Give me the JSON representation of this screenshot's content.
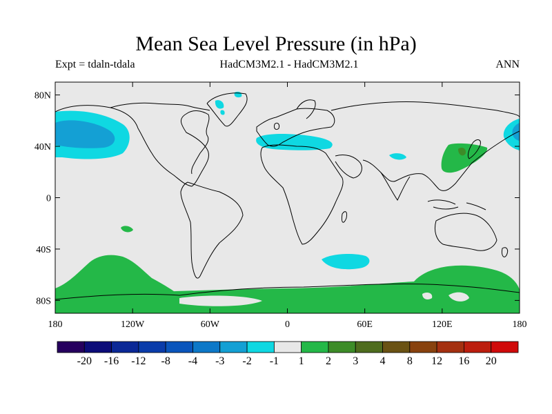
{
  "title": "Mean Sea Level Pressure (in hPa)",
  "subtitle_left": "Expt = tdaln-tdala",
  "subtitle_center": "HadCM3M2.1 - HadCM3M2.1",
  "subtitle_right": "ANN",
  "lat_ticks": [
    {
      "label": "80N",
      "value": 80
    },
    {
      "label": "40N",
      "value": 40
    },
    {
      "label": "0",
      "value": 0
    },
    {
      "label": "40S",
      "value": -40
    },
    {
      "label": "80S",
      "value": -80
    }
  ],
  "lon_ticks": [
    {
      "label": "180",
      "value": -180
    },
    {
      "label": "120W",
      "value": -120
    },
    {
      "label": "60W",
      "value": -60
    },
    {
      "label": "0",
      "value": 0
    },
    {
      "label": "60E",
      "value": 60
    },
    {
      "label": "120E",
      "value": 120
    },
    {
      "label": "180",
      "value": 180
    }
  ],
  "colorbar": {
    "colors": [
      "#26005e",
      "#0c0c78",
      "#0b2896",
      "#0a3caa",
      "#0a55bc",
      "#0d78c8",
      "#14a0d4",
      "#0fd8e2",
      "#e8e8e8",
      "#24b848",
      "#3d8c28",
      "#4e6c1e",
      "#6a5214",
      "#88420e",
      "#a43010",
      "#bc1e0e",
      "#d00a0a"
    ],
    "labels": [
      "-20",
      "-16",
      "-12",
      "-8",
      "-4",
      "-3",
      "-2",
      "-1",
      "1",
      "2",
      "3",
      "4",
      "8",
      "12",
      "16",
      "20"
    ]
  },
  "colors": {
    "ocean": "#e8e8e8",
    "neg_1_2": "#0fd8e2",
    "neg_2_3": "#14a0d4",
    "pos_1_2": "#24b848",
    "pos_2_3": "#3d8c28",
    "coast": "#000000"
  }
}
